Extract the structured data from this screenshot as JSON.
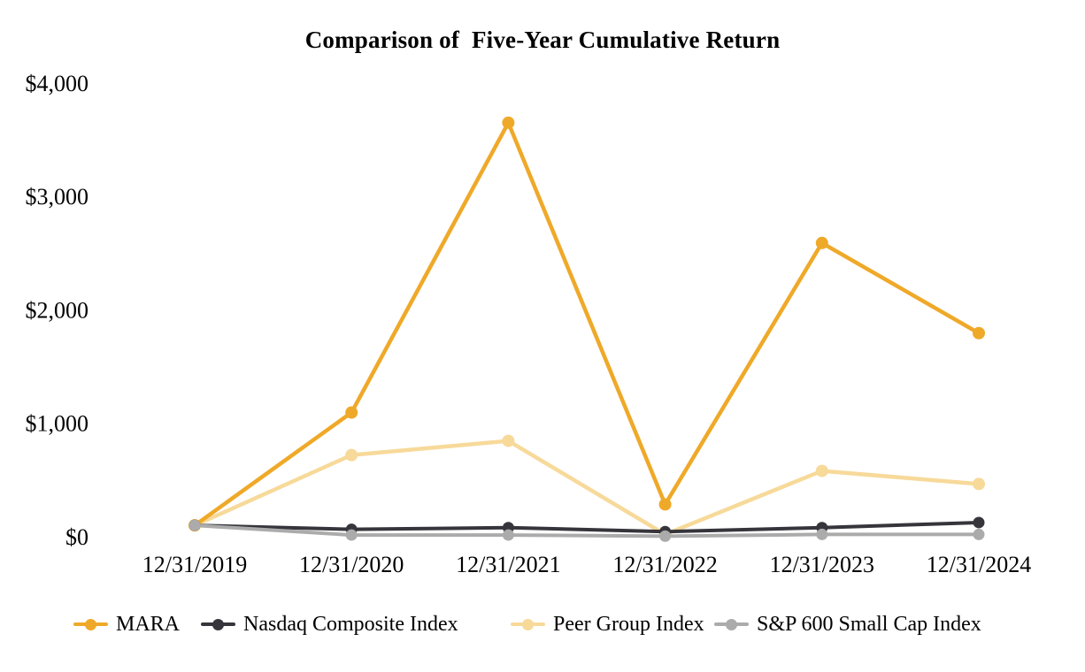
{
  "chart_data": {
    "type": "line",
    "title": "Comparison of  Five-Year Cumulative Return",
    "categories": [
      "12/31/2019",
      "12/31/2020",
      "12/31/2021",
      "12/31/2022",
      "12/31/2023",
      "12/31/2024"
    ],
    "series": [
      {
        "name": "MARA",
        "color": "#EFA929",
        "line_width": 4.5,
        "marker_radius": 7,
        "values": [
          100,
          1095,
          3650,
          285,
          2590,
          1795
        ]
      },
      {
        "name": "Nasdaq Composite Index",
        "color": "#36353B",
        "line_width": 4,
        "marker_radius": 6.5,
        "values": [
          100,
          65,
          80,
          45,
          80,
          125
        ]
      },
      {
        "name": "Peer Group Index",
        "color": "#F7D999",
        "line_width": 4.5,
        "marker_radius": 7,
        "values": [
          100,
          720,
          845,
          20,
          580,
          465
        ]
      },
      {
        "name": "S&P 600 Small Cap Index",
        "color": "#ABABAB",
        "line_width": 4,
        "marker_radius": 6.5,
        "values": [
          100,
          15,
          15,
          5,
          20,
          20
        ]
      }
    ],
    "y_axis": {
      "min": 0,
      "max": 4000,
      "tick_values": [
        0,
        1000,
        2000,
        3000,
        4000
      ],
      "tick_labels": [
        "$0",
        "$1,000",
        "$2,000",
        "$3,000",
        "$4,000"
      ]
    },
    "x_axis": {
      "tick_labels": [
        "12/31/2019",
        "12/31/2020",
        "12/31/2021",
        "12/31/2022",
        "12/31/2023",
        "12/31/2024"
      ]
    },
    "grid": false,
    "axis_lines": false,
    "legend_position": "bottom",
    "text_color": "#000000",
    "background_color": "#FFFFFF"
  }
}
